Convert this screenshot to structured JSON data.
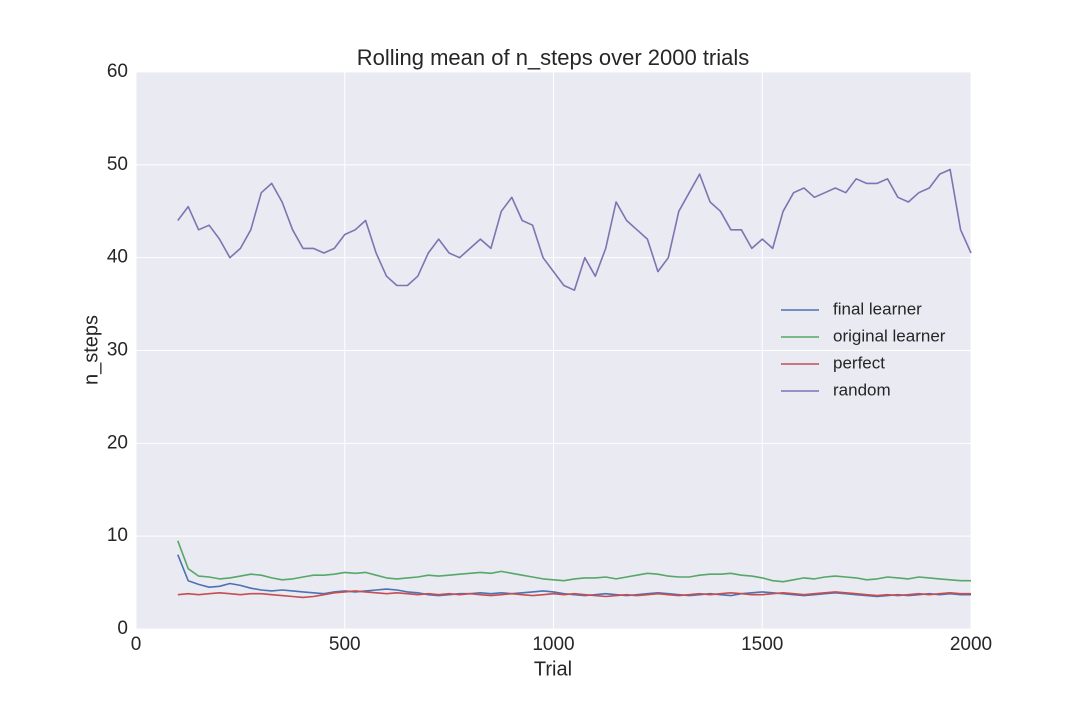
{
  "chart_data": {
    "type": "line",
    "title": "Rolling mean of n_steps over 2000 trials",
    "xlabel": "Trial",
    "ylabel": "n_steps",
    "x": [
      100,
      125,
      150,
      175,
      200,
      225,
      250,
      275,
      300,
      325,
      350,
      375,
      400,
      425,
      450,
      475,
      500,
      525,
      550,
      575,
      600,
      625,
      650,
      675,
      700,
      725,
      750,
      775,
      800,
      825,
      850,
      875,
      900,
      925,
      950,
      975,
      1000,
      1025,
      1050,
      1075,
      1100,
      1125,
      1150,
      1175,
      1200,
      1225,
      1250,
      1275,
      1300,
      1325,
      1350,
      1375,
      1400,
      1425,
      1450,
      1475,
      1500,
      1525,
      1550,
      1575,
      1600,
      1625,
      1650,
      1675,
      1700,
      1725,
      1750,
      1775,
      1800,
      1825,
      1850,
      1875,
      1900,
      1925,
      1950,
      1975,
      2000
    ],
    "series": [
      {
        "name": "final learner",
        "color": "#4c72b0",
        "values": [
          8.0,
          5.2,
          4.8,
          4.5,
          4.6,
          4.9,
          4.7,
          4.4,
          4.2,
          4.1,
          4.2,
          4.1,
          4.0,
          3.9,
          3.8,
          4.0,
          4.1,
          4.0,
          4.1,
          4.2,
          4.3,
          4.2,
          4.0,
          3.9,
          3.7,
          3.6,
          3.7,
          3.8,
          3.8,
          3.9,
          3.8,
          3.9,
          3.8,
          3.9,
          4.0,
          4.1,
          4.0,
          3.8,
          3.7,
          3.6,
          3.7,
          3.8,
          3.7,
          3.6,
          3.7,
          3.8,
          3.9,
          3.8,
          3.7,
          3.6,
          3.7,
          3.8,
          3.7,
          3.6,
          3.8,
          3.9,
          4.0,
          3.9,
          3.8,
          3.7,
          3.6,
          3.7,
          3.8,
          3.9,
          3.8,
          3.7,
          3.6,
          3.5,
          3.6,
          3.7,
          3.6,
          3.7,
          3.8,
          3.7,
          3.8,
          3.7,
          3.7
        ]
      },
      {
        "name": "original learner",
        "color": "#55a868",
        "values": [
          9.5,
          6.5,
          5.7,
          5.6,
          5.4,
          5.5,
          5.7,
          5.9,
          5.8,
          5.5,
          5.3,
          5.4,
          5.6,
          5.8,
          5.8,
          5.9,
          6.1,
          6.0,
          6.1,
          5.8,
          5.5,
          5.4,
          5.5,
          5.6,
          5.8,
          5.7,
          5.8,
          5.9,
          6.0,
          6.1,
          6.0,
          6.2,
          6.0,
          5.8,
          5.6,
          5.4,
          5.3,
          5.2,
          5.4,
          5.5,
          5.5,
          5.6,
          5.4,
          5.6,
          5.8,
          6.0,
          5.9,
          5.7,
          5.6,
          5.6,
          5.8,
          5.9,
          5.9,
          6.0,
          5.8,
          5.7,
          5.5,
          5.2,
          5.1,
          5.3,
          5.5,
          5.4,
          5.6,
          5.7,
          5.6,
          5.5,
          5.3,
          5.4,
          5.6,
          5.5,
          5.4,
          5.6,
          5.5,
          5.4,
          5.3,
          5.2,
          5.2
        ]
      },
      {
        "name": "perfect",
        "color": "#c44e52",
        "values": [
          3.7,
          3.8,
          3.7,
          3.8,
          3.9,
          3.8,
          3.7,
          3.8,
          3.8,
          3.7,
          3.6,
          3.5,
          3.4,
          3.5,
          3.7,
          3.9,
          4.0,
          4.1,
          4.0,
          3.9,
          3.8,
          3.9,
          3.8,
          3.7,
          3.8,
          3.7,
          3.8,
          3.7,
          3.8,
          3.7,
          3.6,
          3.7,
          3.8,
          3.7,
          3.6,
          3.7,
          3.8,
          3.7,
          3.8,
          3.7,
          3.6,
          3.5,
          3.6,
          3.7,
          3.6,
          3.7,
          3.8,
          3.7,
          3.6,
          3.7,
          3.8,
          3.7,
          3.8,
          3.9,
          3.8,
          3.7,
          3.7,
          3.8,
          3.9,
          3.8,
          3.7,
          3.8,
          3.9,
          4.0,
          3.9,
          3.8,
          3.7,
          3.6,
          3.7,
          3.6,
          3.7,
          3.8,
          3.7,
          3.8,
          3.9,
          3.8,
          3.8
        ]
      },
      {
        "name": "random",
        "color": "#8172b2",
        "values": [
          44,
          45.5,
          43,
          43.5,
          42,
          40,
          41,
          43,
          47,
          48,
          46,
          43,
          41,
          41,
          40.5,
          41,
          42.5,
          43,
          44,
          40.5,
          38,
          37,
          37,
          38,
          40.5,
          42,
          40.5,
          40,
          41,
          42,
          41,
          45,
          46.5,
          44,
          43.5,
          40,
          38.5,
          37,
          36.5,
          40,
          38,
          41,
          46,
          44,
          43,
          42,
          38.5,
          40,
          45,
          47,
          49,
          46,
          45,
          43,
          43,
          41,
          42,
          41,
          45,
          47,
          47.5,
          46.5,
          47,
          47.5,
          47,
          48.5,
          48,
          48,
          48.5,
          46.5,
          46,
          47,
          47.5,
          49,
          49.5,
          43,
          40.5
        ]
      }
    ],
    "xlim": [
      0,
      2000
    ],
    "xticks": [
      0,
      500,
      1000,
      1500,
      2000
    ],
    "ylim": [
      0,
      60
    ],
    "yticks": [
      0,
      10,
      20,
      30,
      40,
      50,
      60
    ],
    "grid": true,
    "legend": "center right"
  }
}
